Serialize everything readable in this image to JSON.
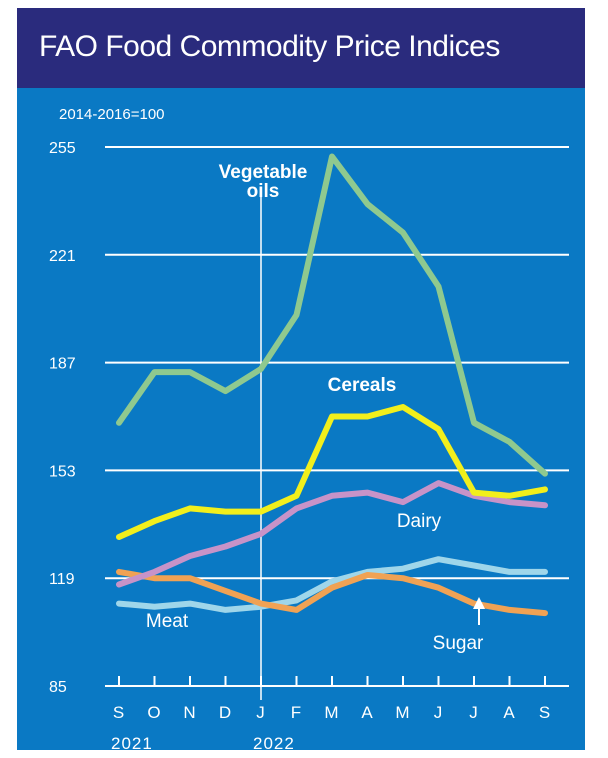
{
  "title": "FAO Food Commodity Price Indices",
  "chart_data": {
    "type": "line",
    "title": "FAO Food Commodity Price Indices",
    "unit_note": "2014-2016=100",
    "x": [
      "S",
      "O",
      "N",
      "D",
      "J",
      "F",
      "M",
      "A",
      "M",
      "J",
      "J",
      "A",
      "S"
    ],
    "year_labels": [
      {
        "label": "2021",
        "at_index": 0
      },
      {
        "label": "2022",
        "at_index": 4
      }
    ],
    "ylim": [
      85,
      255
    ],
    "yticks": [
      85,
      119,
      153,
      187,
      221,
      255
    ],
    "grid": true,
    "series": [
      {
        "name": "Vegetable oils",
        "color": "#8fc98f",
        "values": [
          168,
          184,
          184,
          178,
          185,
          202,
          252,
          237,
          228,
          211,
          168,
          162,
          152
        ]
      },
      {
        "name": "Cereals",
        "color": "#f2ef1c",
        "values": [
          132,
          137,
          141,
          140,
          140,
          145,
          170,
          170,
          173,
          166,
          146,
          145,
          147
        ]
      },
      {
        "name": "Dairy",
        "color": "#c793c8",
        "values": [
          117,
          121,
          126,
          129,
          133,
          141,
          145,
          146,
          143,
          149,
          145,
          143,
          142
        ]
      },
      {
        "name": "Meat",
        "color": "#9fd6ea",
        "values": [
          111,
          110,
          111,
          109,
          110,
          112,
          118,
          121,
          122,
          125,
          123,
          121,
          121
        ]
      },
      {
        "name": "Sugar",
        "color": "#f0a254",
        "values": [
          121,
          119,
          119,
          115,
          111,
          109,
          116,
          120,
          119,
          116,
          111,
          109,
          108
        ]
      }
    ],
    "annotations": [
      {
        "text_lines": [
          "Vegetable",
          "oils"
        ]
      },
      {
        "text_lines": [
          "Cereals"
        ]
      },
      {
        "text_lines": [
          "Dairy"
        ]
      },
      {
        "text_lines": [
          "Meat"
        ]
      },
      {
        "text_lines": [
          "Sugar"
        ]
      }
    ]
  }
}
